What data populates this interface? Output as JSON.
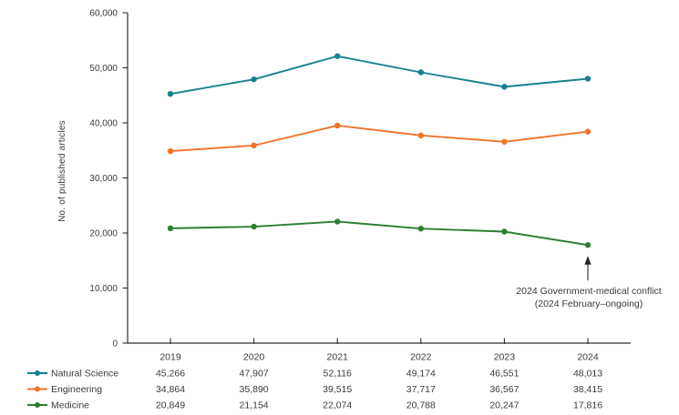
{
  "chart_data": {
    "type": "line",
    "title": "",
    "xlabel": "",
    "ylabel": "No. of published articles",
    "categories": [
      "2019",
      "2020",
      "2021",
      "2022",
      "2023",
      "2024"
    ],
    "ylim": [
      0,
      60000
    ],
    "ytick_step": 10000,
    "ytick_labels": [
      "0",
      "10,000",
      "20,000",
      "30,000",
      "40,000",
      "50,000",
      "60,000"
    ],
    "grid": "off",
    "legend_position": "bottom-left-as-table-row-headers",
    "series": [
      {
        "name": "Natural Science",
        "color": "#16808d",
        "values": [
          45266,
          47907,
          52116,
          49174,
          46551,
          48013
        ]
      },
      {
        "name": "Engineering",
        "color": "#f2712c",
        "values": [
          34864,
          35890,
          39515,
          37717,
          36567,
          38415
        ]
      },
      {
        "name": "Medicine",
        "color": "#2e7d32",
        "values": [
          20849,
          21154,
          22074,
          20788,
          20247,
          17816
        ]
      }
    ],
    "value_table": {
      "columns": [
        "2019",
        "2020",
        "2021",
        "2022",
        "2023",
        "2024"
      ],
      "rows": [
        {
          "label": "Natural Science",
          "cells": [
            "45,266",
            "47,907",
            "52,116",
            "49,174",
            "46,551",
            "48,013"
          ]
        },
        {
          "label": "Engineering",
          "cells": [
            "34,864",
            "35,890",
            "39,515",
            "37,717",
            "36,567",
            "38,415"
          ]
        },
        {
          "label": "Medicine",
          "cells": [
            "20,849",
            "21,154",
            "22,074",
            "20,788",
            "20,247",
            "17,816"
          ]
        }
      ]
    },
    "annotation": {
      "line1": "2024 Government-medical conflict",
      "line2": "(2024 February–ongoing)",
      "target_series": "Medicine",
      "target_category": "2024",
      "marker": "up-arrow"
    }
  }
}
